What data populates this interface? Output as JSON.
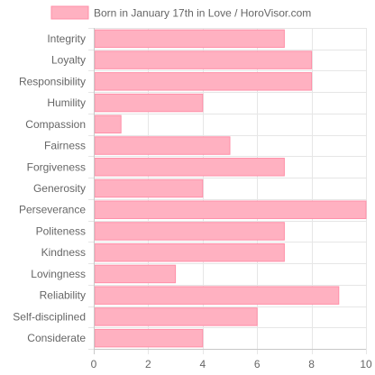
{
  "chart_data": {
    "type": "bar",
    "orientation": "horizontal",
    "legend": {
      "position": "top",
      "label": "Born in January 17th in Love / HoroVisor.com"
    },
    "categories": [
      "Integrity",
      "Loyalty",
      "Responsibility",
      "Humility",
      "Compassion",
      "Fairness",
      "Forgiveness",
      "Generosity",
      "Perseverance",
      "Politeness",
      "Kindness",
      "Lovingness",
      "Reliability",
      "Self-disciplined",
      "Considerate"
    ],
    "series": [
      {
        "name": "Born in January 17th in Love / HoroVisor.com",
        "values": [
          7,
          8,
          8,
          4,
          1,
          5,
          7,
          4,
          10,
          7,
          7,
          3,
          9,
          6,
          4
        ]
      }
    ],
    "x_ticks": [
      0,
      2,
      4,
      6,
      8,
      10
    ],
    "xlim": [
      0,
      10
    ],
    "grid": true,
    "colors": {
      "bar_fill": "#ffb1c1",
      "bar_border": "#ff8fa8",
      "grid": "#e6e6e6",
      "axis": "#c8c8c8",
      "text": "#666666"
    }
  }
}
